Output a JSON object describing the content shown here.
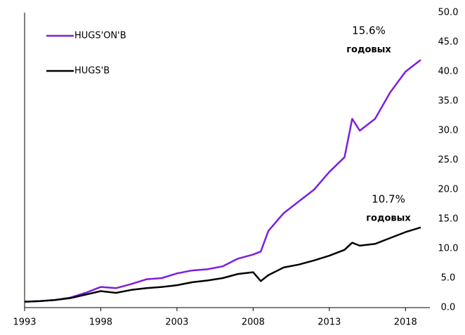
{
  "chart_data": {
    "type": "line",
    "x": [
      1993,
      1994,
      1995,
      1996,
      1997,
      1998,
      1999,
      2000,
      2001,
      2002,
      2003,
      2004,
      2005,
      2006,
      2007,
      2008,
      2008.5,
      2009,
      2010,
      2011,
      2012,
      2013,
      2014,
      2014.5,
      2015,
      2016,
      2017,
      2018,
      2019
    ],
    "series": [
      {
        "name": "HUGS'ON'B",
        "color": "#7b1fe0",
        "values": [
          1.0,
          1.1,
          1.3,
          1.7,
          2.5,
          3.5,
          3.3,
          4.0,
          4.8,
          5.0,
          5.8,
          6.3,
          6.5,
          7.0,
          8.3,
          9.0,
          9.5,
          13,
          16,
          18,
          20,
          23,
          25.5,
          32,
          30,
          32,
          36.5,
          40,
          42
        ]
      },
      {
        "name": "HUGS'B",
        "color": "#000000",
        "values": [
          1.0,
          1.1,
          1.3,
          1.6,
          2.2,
          2.8,
          2.5,
          3.0,
          3.3,
          3.5,
          3.8,
          4.3,
          4.6,
          5.0,
          5.7,
          6.0,
          4.5,
          5.5,
          6.8,
          7.3,
          8.0,
          8.8,
          9.8,
          11.0,
          10.5,
          10.8,
          11.8,
          12.8,
          13.6
        ]
      }
    ],
    "xlim": [
      1993,
      2019.6
    ],
    "xticks": [
      1993,
      1998,
      2003,
      2008,
      2013,
      2018
    ],
    "ylim": [
      0,
      50
    ],
    "yticks": [
      {
        "value": 0,
        "label": "0.0"
      },
      {
        "value": 5,
        "label": "5.0"
      },
      {
        "value": 10,
        "label": "10.0"
      },
      {
        "value": 15,
        "label": "15.0"
      },
      {
        "value": 20,
        "label": "20.0"
      },
      {
        "value": 25,
        "label": "25.0"
      },
      {
        "value": 30,
        "label": "30.0"
      },
      {
        "value": 35,
        "label": "35.0"
      },
      {
        "value": 40,
        "label": "40.0"
      },
      {
        "value": 45,
        "label": "45.0"
      },
      {
        "value": 50,
        "label": "50.0"
      }
    ],
    "annotations": [
      {
        "text": "15.6%",
        "sub": "годовых",
        "color": "#7b1fe0"
      },
      {
        "text": "10.7%",
        "sub": "годовых",
        "color": "#000000"
      }
    ]
  }
}
